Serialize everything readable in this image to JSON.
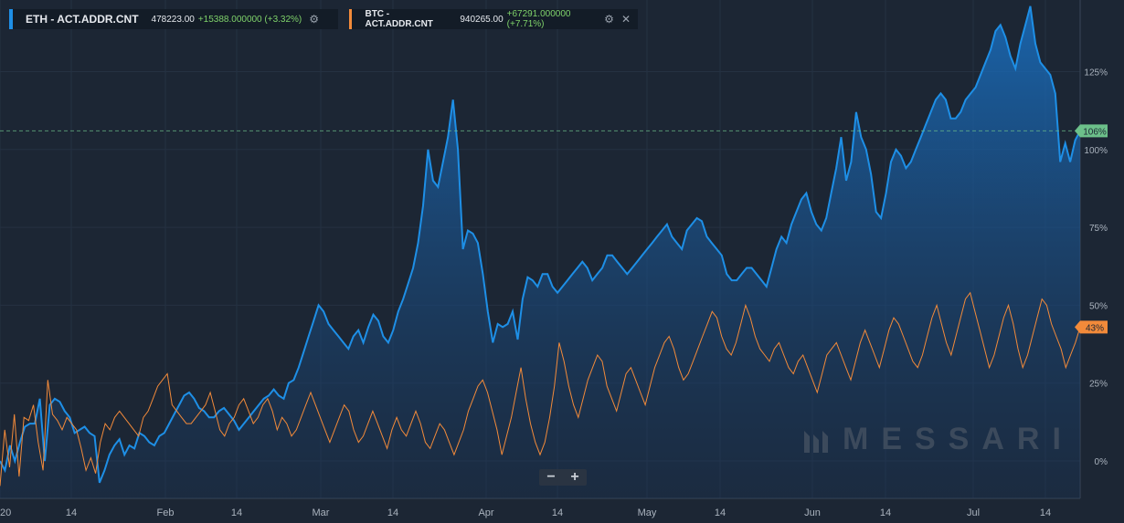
{
  "legend": {
    "eth": {
      "name": "ETH - ACT.ADDR.CNT",
      "last": "478223.00",
      "change": "+15388.000000 (+3.32%)",
      "color": "#1e8fe6",
      "icon": "gear-icon"
    },
    "btc": {
      "name": "BTC - ACT.ADDR.CNT",
      "last": "940265.00",
      "change": "+67291.000000 (+7.71%)",
      "color": "#f28a3a",
      "icons": [
        "gear-icon",
        "close-icon"
      ]
    }
  },
  "zoom": {
    "minus": "−",
    "plus": "+"
  },
  "watermark": "MESSARI",
  "chart_data": {
    "type": "line",
    "x_tick_labels": [
      "20",
      "14",
      "Feb",
      "14",
      "Mar",
      "14",
      "Apr",
      "14",
      "May",
      "14",
      "Jun",
      "14",
      "Jul",
      "14"
    ],
    "y_tick_labels": [
      "125%",
      "100%",
      "75%",
      "50%",
      "25%",
      "0%"
    ],
    "y_ticks": [
      125,
      100,
      75,
      50,
      25,
      0
    ],
    "ylim": [
      -12,
      148
    ],
    "grid": true,
    "reference_line": {
      "value": 106,
      "label": "106%",
      "color": "#6cc08a"
    },
    "series": [
      {
        "name": "ETH - ACT.ADDR.CNT",
        "color": "#1e8fe6",
        "fill": "area",
        "last_label": "106%",
        "values": [
          0,
          -3,
          5,
          0,
          6,
          11,
          12,
          12,
          20,
          0,
          18,
          20,
          19,
          16,
          14,
          9,
          10,
          11,
          9,
          8,
          -7,
          -3,
          2,
          5,
          7,
          2,
          5,
          4,
          9,
          8,
          6,
          5,
          8,
          9,
          12,
          15,
          18,
          21,
          22,
          20,
          17,
          16,
          14,
          14,
          16,
          17,
          15,
          13,
          10,
          12,
          14,
          16,
          18,
          20,
          21,
          23,
          21,
          20,
          25,
          26,
          30,
          35,
          40,
          45,
          50,
          48,
          44,
          42,
          40,
          38,
          36,
          40,
          42,
          38,
          43,
          47,
          45,
          40,
          38,
          42,
          48,
          52,
          57,
          62,
          70,
          82,
          100,
          90,
          88,
          96,
          104,
          116,
          100,
          68,
          74,
          73,
          70,
          60,
          48,
          38,
          44,
          43,
          44,
          48,
          39,
          52,
          59,
          58,
          56,
          60,
          60,
          56,
          54,
          56,
          58,
          60,
          62,
          64,
          62,
          58,
          60,
          62,
          66,
          66,
          64,
          62,
          60,
          62,
          64,
          66,
          68,
          70,
          72,
          74,
          76,
          72,
          70,
          68,
          74,
          76,
          78,
          77,
          72,
          70,
          68,
          66,
          60,
          58,
          58,
          60,
          62,
          62,
          60,
          58,
          56,
          62,
          68,
          72,
          70,
          76,
          80,
          84,
          86,
          80,
          76,
          74,
          78,
          86,
          94,
          104,
          90,
          96,
          112,
          104,
          100,
          92,
          80,
          78,
          86,
          96,
          100,
          98,
          94,
          96,
          100,
          104,
          108,
          112,
          116,
          118,
          116,
          110,
          110,
          112,
          116,
          118,
          120,
          124,
          128,
          132,
          138,
          140,
          136,
          130,
          126,
          134,
          140,
          146,
          134,
          128,
          126,
          124,
          118,
          96,
          102,
          96,
          103,
          106
        ]
      },
      {
        "name": "BTC - ACT.ADDR.CNT",
        "color": "#f28a3a",
        "fill": "none",
        "last_label": "43%",
        "values": [
          -8,
          10,
          -2,
          15,
          -5,
          14,
          13,
          18,
          6,
          -3,
          26,
          15,
          13,
          10,
          14,
          12,
          10,
          4,
          -3,
          1,
          -4,
          6,
          12,
          10,
          14,
          16,
          14,
          12,
          10,
          8,
          14,
          16,
          20,
          24,
          26,
          28,
          18,
          16,
          14,
          12,
          12,
          14,
          16,
          18,
          22,
          16,
          10,
          8,
          12,
          14,
          18,
          20,
          16,
          12,
          14,
          18,
          20,
          16,
          10,
          14,
          12,
          8,
          10,
          14,
          18,
          22,
          18,
          14,
          10,
          6,
          10,
          14,
          18,
          16,
          10,
          6,
          8,
          12,
          16,
          12,
          8,
          4,
          10,
          14,
          10,
          8,
          12,
          16,
          12,
          6,
          4,
          8,
          12,
          10,
          6,
          2,
          6,
          10,
          16,
          20,
          24,
          26,
          22,
          16,
          10,
          2,
          8,
          14,
          22,
          30,
          20,
          12,
          6,
          2,
          6,
          14,
          24,
          38,
          32,
          24,
          18,
          14,
          20,
          26,
          30,
          34,
          32,
          24,
          20,
          16,
          22,
          28,
          30,
          26,
          22,
          18,
          24,
          30,
          34,
          38,
          40,
          36,
          30,
          26,
          28,
          32,
          36,
          40,
          44,
          48,
          46,
          40,
          36,
          34,
          38,
          44,
          50,
          46,
          40,
          36,
          34,
          32,
          36,
          38,
          34,
          30,
          28,
          32,
          34,
          30,
          26,
          22,
          28,
          34,
          36,
          38,
          34,
          30,
          26,
          32,
          38,
          42,
          38,
          34,
          30,
          36,
          42,
          46,
          44,
          40,
          36,
          32,
          30,
          34,
          40,
          46,
          50,
          44,
          38,
          34,
          40,
          46,
          52,
          54,
          48,
          42,
          36,
          30,
          34,
          40,
          46,
          50,
          44,
          36,
          30,
          34,
          40,
          46,
          52,
          50,
          44,
          40,
          36,
          30,
          34,
          38,
          43
        ]
      }
    ]
  }
}
